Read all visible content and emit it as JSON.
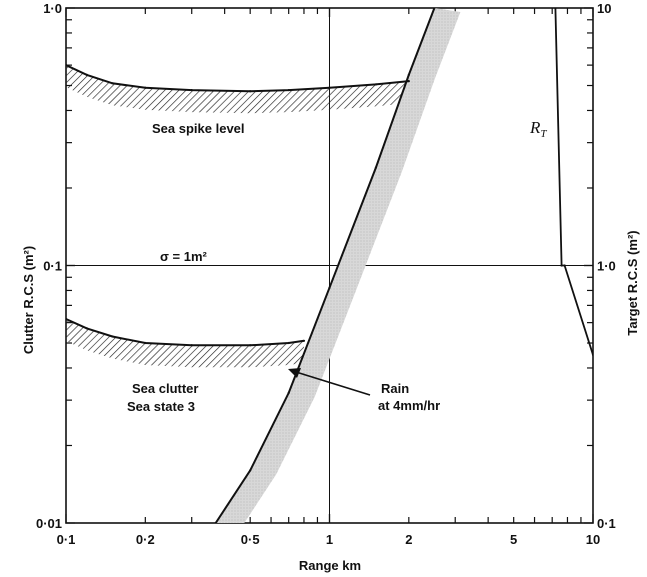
{
  "chart_data": {
    "type": "line",
    "title": "",
    "xlabel": "Range km",
    "ylabel_left": "Clutter R.C.S (m²)",
    "ylabel_right": "Target R.C.S (m²)",
    "x_scale": "log",
    "y_scale": "log",
    "xlim": [
      0.1,
      10
    ],
    "ylim_left": [
      0.01,
      1.0
    ],
    "ylim_right": [
      0.1,
      10
    ],
    "x_tick_labels": [
      "0·1",
      "0·2",
      "0·5",
      "1",
      "2",
      "5",
      "10"
    ],
    "x_tick_values": [
      0.1,
      0.2,
      0.5,
      1,
      2,
      5,
      10
    ],
    "y_left_tick_labels": [
      "0·01",
      "0·1",
      "1·0"
    ],
    "y_left_tick_values": [
      0.01,
      0.1,
      1.0
    ],
    "y_right_tick_labels": [
      "0·1",
      "1·0",
      "10"
    ],
    "y_right_tick_values": [
      0.1,
      1.0,
      10
    ],
    "grid": false,
    "series": [
      {
        "name": "Sea spike level",
        "x": [
          0.1,
          0.12,
          0.15,
          0.2,
          0.3,
          0.5,
          0.7,
          1.0,
          1.5,
          2.0
        ],
        "y": [
          0.6,
          0.55,
          0.51,
          0.49,
          0.48,
          0.475,
          0.48,
          0.49,
          0.505,
          0.52
        ]
      },
      {
        "name": "Sea clutter Sea state 3",
        "x": [
          0.1,
          0.12,
          0.15,
          0.2,
          0.3,
          0.5,
          0.7,
          0.8
        ],
        "y": [
          0.062,
          0.057,
          0.053,
          0.05,
          0.049,
          0.049,
          0.05,
          0.051
        ]
      },
      {
        "name": "Rain at 4mm/hr",
        "x": [
          0.37,
          0.5,
          0.7,
          1.0,
          1.5,
          2.0,
          2.5
        ],
        "y": [
          0.01,
          0.016,
          0.032,
          0.082,
          0.24,
          0.55,
          1.0
        ]
      },
      {
        "name": "Target",
        "x": [
          7.2,
          7.6,
          7.8,
          10
        ],
        "y_right": [
          10,
          1.0,
          1.0,
          0.45
        ]
      }
    ],
    "annotations": {
      "sea_spike": "Sea spike level",
      "sea_clutter_1": "Sea clutter",
      "sea_clutter_2": "Sea state 3",
      "rain_1": "Rain",
      "rain_2": "at 4mm/hr",
      "sigma": "σ = 1m²",
      "rt": "R",
      "rt_sub": "T"
    }
  }
}
